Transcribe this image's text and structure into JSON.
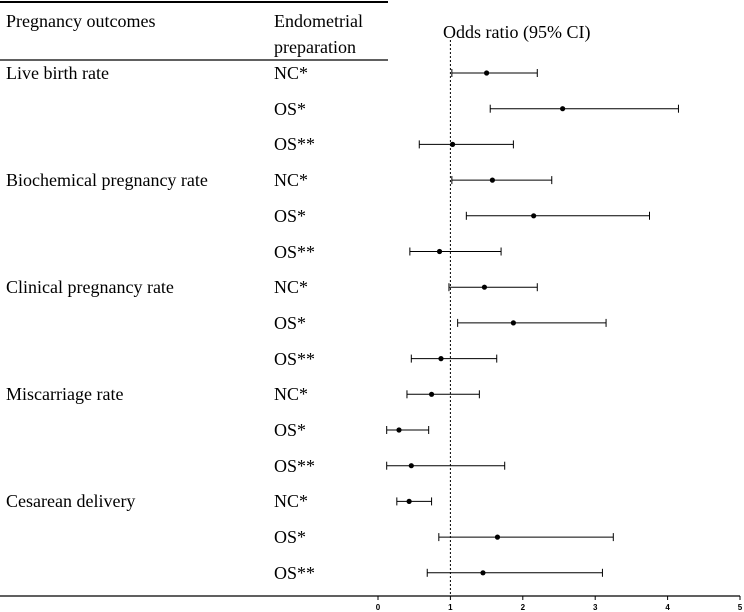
{
  "chart_data": {
    "type": "forest",
    "title": "Odds ratio (95% CI)",
    "columns": {
      "outcome_header": "Pregnancy outcomes",
      "prep_header_line1": "Endometrial",
      "prep_header_line2": "preparation"
    },
    "xlim": [
      0,
      5
    ],
    "xticks": [
      "0",
      "1",
      "2",
      "3",
      "4",
      "5"
    ],
    "reference_line": 1,
    "groups": [
      {
        "name": "Live birth rate",
        "rows": [
          {
            "prep": "NC*",
            "or": 1.5,
            "lo": 1.02,
            "hi": 2.2
          },
          {
            "prep": "OS*",
            "or": 2.55,
            "lo": 1.55,
            "hi": 4.15
          },
          {
            "prep": "OS**",
            "or": 1.03,
            "lo": 0.57,
            "hi": 1.87
          }
        ]
      },
      {
        "name": "Biochemical pregnancy rate",
        "rows": [
          {
            "prep": "NC*",
            "or": 1.58,
            "lo": 1.02,
            "hi": 2.4
          },
          {
            "prep": "OS*",
            "or": 2.15,
            "lo": 1.22,
            "hi": 3.75
          },
          {
            "prep": "OS**",
            "or": 0.85,
            "lo": 0.44,
            "hi": 1.7
          }
        ]
      },
      {
        "name": "Clinical pregnancy rate",
        "rows": [
          {
            "prep": "NC*",
            "or": 1.47,
            "lo": 0.98,
            "hi": 2.2
          },
          {
            "prep": "OS*",
            "or": 1.87,
            "lo": 1.1,
            "hi": 3.15
          },
          {
            "prep": "OS**",
            "or": 0.87,
            "lo": 0.46,
            "hi": 1.64
          }
        ]
      },
      {
        "name": "Miscarriage rate",
        "rows": [
          {
            "prep": "NC*",
            "or": 0.74,
            "lo": 0.4,
            "hi": 1.4
          },
          {
            "prep": "OS*",
            "or": 0.29,
            "lo": 0.12,
            "hi": 0.7
          },
          {
            "prep": "OS**",
            "or": 0.46,
            "lo": 0.12,
            "hi": 1.75
          }
        ]
      },
      {
        "name": "Cesarean delivery",
        "rows": [
          {
            "prep": "NC*",
            "or": 0.43,
            "lo": 0.26,
            "hi": 0.74
          },
          {
            "prep": "OS*",
            "or": 1.65,
            "lo": 0.84,
            "hi": 3.25
          },
          {
            "prep": "OS**",
            "or": 1.45,
            "lo": 0.68,
            "hi": 3.1
          }
        ]
      }
    ]
  }
}
